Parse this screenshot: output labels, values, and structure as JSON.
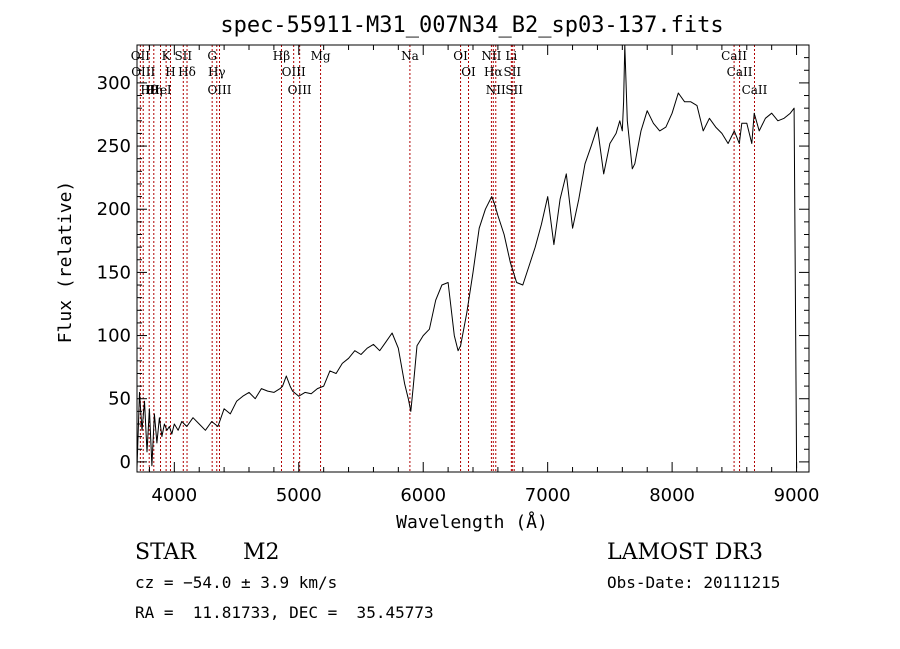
{
  "chart_data": {
    "type": "line",
    "title": "spec-55911-M31_007N34_B2_sp03-137.fits",
    "xlabel": "Wavelength (Å)",
    "ylabel": "Flux (relative)",
    "xlim": [
      3700,
      9100
    ],
    "ylim": [
      -8,
      330
    ],
    "xticks": [
      4000,
      5000,
      6000,
      7000,
      8000,
      9000
    ],
    "xtick_labels": [
      "4000",
      "5000",
      "6000",
      "7000",
      "8000",
      "9000"
    ],
    "yticks": [
      0,
      50,
      100,
      150,
      200,
      250,
      300
    ],
    "ytick_labels": [
      "0",
      "50",
      "100",
      "150",
      "200",
      "250",
      "300"
    ],
    "grid": false,
    "series": [
      {
        "name": "flux",
        "x": [
          3700,
          3720,
          3740,
          3760,
          3780,
          3800,
          3820,
          3840,
          3860,
          3880,
          3900,
          3920,
          3940,
          3960,
          3980,
          4000,
          4030,
          4060,
          4100,
          4150,
          4200,
          4250,
          4300,
          4350,
          4400,
          4450,
          4500,
          4550,
          4600,
          4650,
          4700,
          4750,
          4800,
          4850,
          4870,
          4900,
          4930,
          4950,
          5000,
          5050,
          5100,
          5150,
          5200,
          5250,
          5300,
          5350,
          5400,
          5450,
          5500,
          5550,
          5600,
          5650,
          5700,
          5750,
          5800,
          5850,
          5880,
          5900,
          5920,
          5950,
          6000,
          6050,
          6100,
          6150,
          6200,
          6250,
          6280,
          6300,
          6350,
          6400,
          6450,
          6500,
          6550,
          6570,
          6600,
          6650,
          6700,
          6750,
          6800,
          6850,
          6900,
          6950,
          7000,
          7050,
          7100,
          7150,
          7200,
          7250,
          7300,
          7350,
          7400,
          7450,
          7500,
          7550,
          7580,
          7600,
          7610,
          7620,
          7640,
          7680,
          7700,
          7750,
          7800,
          7850,
          7900,
          7950,
          8000,
          8050,
          8100,
          8150,
          8200,
          8250,
          8300,
          8350,
          8400,
          8450,
          8500,
          8540,
          8560,
          8600,
          8640,
          8660,
          8700,
          8750,
          8800,
          8850,
          8900,
          8950,
          8980,
          9000
        ],
        "y": [
          -5,
          55,
          25,
          48,
          8,
          42,
          -3,
          38,
          15,
          35,
          20,
          30,
          25,
          28,
          22,
          30,
          25,
          32,
          28,
          35,
          30,
          25,
          32,
          28,
          42,
          38,
          48,
          52,
          55,
          50,
          58,
          56,
          55,
          58,
          60,
          68,
          60,
          56,
          52,
          55,
          54,
          58,
          60,
          72,
          70,
          78,
          82,
          88,
          85,
          90,
          93,
          88,
          95,
          102,
          90,
          62,
          50,
          40,
          60,
          92,
          100,
          105,
          128,
          140,
          142,
          100,
          88,
          92,
          118,
          150,
          185,
          200,
          210,
          205,
          195,
          180,
          158,
          142,
          140,
          155,
          170,
          188,
          210,
          172,
          208,
          228,
          185,
          208,
          236,
          250,
          265,
          228,
          252,
          260,
          270,
          262,
          285,
          330,
          270,
          232,
          236,
          262,
          278,
          268,
          262,
          265,
          276,
          292,
          285,
          285,
          282,
          262,
          272,
          265,
          260,
          252,
          262,
          252,
          268,
          268,
          252,
          276,
          262,
          272,
          276,
          270,
          272,
          276,
          280,
          -5
        ]
      }
    ],
    "line_markers": [
      {
        "wavelength": 3727,
        "label": "OII"
      },
      {
        "wavelength": 3750,
        "label": "OIII"
      },
      {
        "wavelength": 3798,
        "label": "Hθ"
      },
      {
        "wavelength": 3835,
        "label": "Hη"
      },
      {
        "wavelength": 3889,
        "label": "HeI"
      },
      {
        "wavelength": 3934,
        "label": "K"
      },
      {
        "wavelength": 3969,
        "label": "H"
      },
      {
        "wavelength": 4072,
        "label": "SII"
      },
      {
        "wavelength": 4102,
        "label": "Hδ"
      },
      {
        "wavelength": 4304,
        "label": "G"
      },
      {
        "wavelength": 4341,
        "label": "Hγ"
      },
      {
        "wavelength": 4363,
        "label": "OIII"
      },
      {
        "wavelength": 4861,
        "label": "Hβ"
      },
      {
        "wavelength": 4959,
        "label": "OIII"
      },
      {
        "wavelength": 5007,
        "label": "OIII"
      },
      {
        "wavelength": 5175,
        "label": "Mg"
      },
      {
        "wavelength": 5893,
        "label": "Na"
      },
      {
        "wavelength": 6300,
        "label": "OI"
      },
      {
        "wavelength": 6364,
        "label": "OI"
      },
      {
        "wavelength": 6548,
        "label": "NII"
      },
      {
        "wavelength": 6563,
        "label": "Hα"
      },
      {
        "wavelength": 6583,
        "label": "NII"
      },
      {
        "wavelength": 6708,
        "label": "Li"
      },
      {
        "wavelength": 6716,
        "label": "SII"
      },
      {
        "wavelength": 6731,
        "label": "SII"
      },
      {
        "wavelength": 8498,
        "label": "CaII"
      },
      {
        "wavelength": 8542,
        "label": "CaII"
      },
      {
        "wavelength": 8662,
        "label": "CaII"
      }
    ]
  },
  "info": {
    "object_class": "STAR",
    "subclass": "M2",
    "survey": "LAMOST DR3",
    "cz": "cz = −54.0 ± 3.9 km/s",
    "obs_date": "Obs-Date: 20111215",
    "coords": "RA =  11.81733, DEC =  35.45773"
  },
  "colors": {
    "spectrum": "#000000",
    "marker": "#b00000",
    "axis": "#000000"
  }
}
